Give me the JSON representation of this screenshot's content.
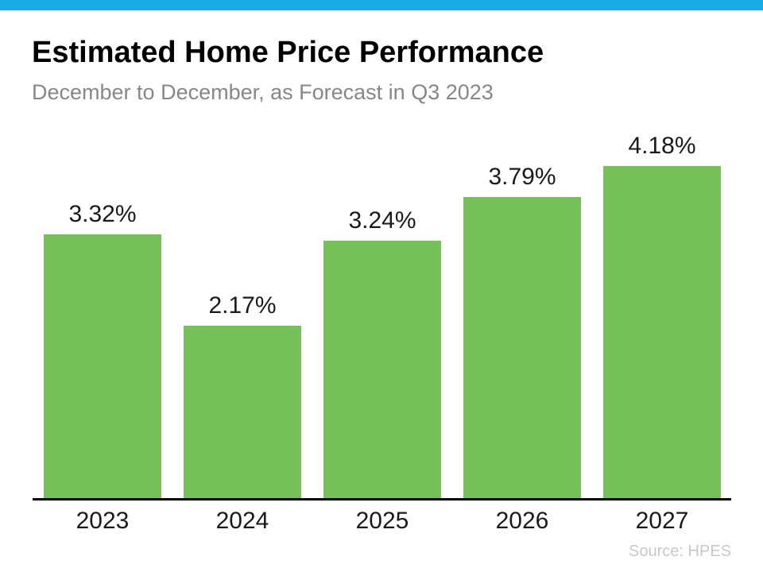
{
  "page": {
    "background": "#ffffff",
    "accent_color": "#18ABE8"
  },
  "header": {
    "title": "Estimated Home Price Performance",
    "subtitle": "December to December, as Forecast in Q3 2023"
  },
  "chart_data": {
    "type": "bar",
    "title": "Estimated Home Price Performance",
    "subtitle": "December to December, as Forecast in Q3 2023",
    "categories": [
      "2023",
      "2024",
      "2025",
      "2026",
      "2027"
    ],
    "values": [
      3.32,
      2.17,
      3.24,
      3.79,
      4.18
    ],
    "value_labels": [
      "3.32%",
      "2.17%",
      "3.24%",
      "3.79%",
      "4.18%"
    ],
    "bar_color": "#76C05A",
    "axis_color": "#000000",
    "xlabel": "",
    "ylabel": "",
    "ylim": [
      0,
      4.18
    ],
    "grid": false,
    "legend": false
  },
  "footer": {
    "source": "Source: HPES"
  }
}
